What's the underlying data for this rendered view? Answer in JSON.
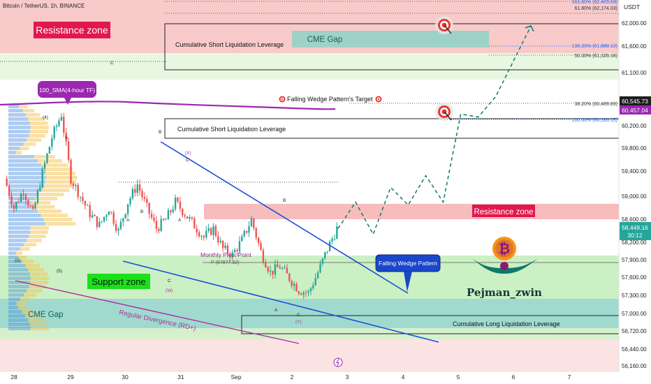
{
  "header": {
    "symbol_line": "Bitcoin / TetherUS, 1h, BINANCE",
    "currency": "USDT"
  },
  "price_axis": {
    "ticks": [
      "62,000.00",
      "61,600.00",
      "61,100.00",
      "60,600.00",
      "60,200.00",
      "59,800.00",
      "59,400.00",
      "59,000.00",
      "58,600.00",
      "58,200.00",
      "57,900.00",
      "57,600.00",
      "57,300.00",
      "57,000.00",
      "56,720.00",
      "56,440.00",
      "56,160.00"
    ],
    "current_price": "58,449.16",
    "countdown": "30:12",
    "badge_high": "60,545.73",
    "badge_low": "60,457.04"
  },
  "time_axis": {
    "ticks": [
      "28",
      "29",
      "30",
      "31",
      "Sep",
      "2",
      "3",
      "4",
      "5",
      "6",
      "7"
    ]
  },
  "fib": {
    "top": "161.80% (62,403.63)",
    "f618": "61.80% (62,174.03)",
    "f1382": "138.20% (61,689.13)",
    "f50": "50.00% (61,326.18)",
    "f382": "38.20% (60,489.89)",
    "f100": "100.00% (60,393.15)"
  },
  "annotations": {
    "resistance_top": "Resistance zone",
    "resistance_mid": "Resistance zone",
    "support": "Support zone",
    "cme_gap_top": "CME Gap",
    "cme_gap_bottom": "CME Gap",
    "short_liq_1": "Cumulative Short Liquidation Leverage",
    "short_liq_2": "Cumulative Short Liquidation Leverage",
    "long_liq": "Cumulative Long Liquidation Leverage",
    "sma": "100_SMA(4-hour TF)",
    "wedge_target": "Falling Wedge Pattern's Target",
    "wedge_label": "Falling Wedge Pattern",
    "pivot": "Monthly Pivot Point",
    "pivot_value": "P (57877.92)",
    "divergence": "Regular Divergence (RD+)",
    "author": "Pejman_zwin",
    "wave_c_top": "C",
    "wave_4": "(4)",
    "wave_a1": "A",
    "wave_3": "(3)",
    "wave_5": "(5)",
    "wave_b1": "B",
    "wave_x": "(X)",
    "wave_c2": "C",
    "wave_a2": "A",
    "wave_b2": "B",
    "wave_c3": "C",
    "wave_w": "(W)",
    "wave_a3": "A",
    "wave_b3": "B",
    "wave_a4": "A",
    "wave_c4": "C",
    "wave_y": "(Y)"
  },
  "colors": {
    "resistance": "#f4a6a6",
    "support": "#b9ebb0",
    "cme_gap": "#8fd3c6",
    "up_candle": "#26a69a",
    "down_candle": "#ef5350",
    "wedge_line": "#1b4fd6",
    "sma_line": "#9c27b0",
    "divergence": "#b02ca8"
  },
  "chart_data": {
    "type": "candlestick",
    "title": "Bitcoin / TetherUS, 1h, BINANCE",
    "x_ticks": [
      "28",
      "29",
      "30",
      "31",
      "Sep",
      "2",
      "3",
      "4",
      "5",
      "6",
      "7"
    ],
    "y_ticks": [
      62000,
      61600,
      61100,
      60600,
      60200,
      59800,
      59400,
      59000,
      58600,
      58200,
      57900,
      57600,
      57300,
      57000,
      56720,
      56440,
      56160
    ],
    "ylim": [
      56100,
      62500
    ],
    "last_price": 58449.16,
    "close_path": [
      59300,
      58800,
      59100,
      58700,
      59400,
      60000,
      60400,
      59300,
      59000,
      58700,
      58500,
      58800,
      58400,
      58900,
      59200,
      58800,
      58450,
      58600,
      58900,
      58700,
      58500,
      58300,
      58450,
      58100,
      58000,
      58250,
      58600,
      58050,
      57700,
      57800,
      57600,
      57400,
      57350,
      57700,
      58100,
      58449
    ],
    "projection_path": [
      58449,
      58900,
      58350,
      59150,
      58850,
      59350,
      58900,
      60400,
      60350,
      60700,
      61300,
      61900
    ],
    "fib_levels": [
      {
        "label": "161.80%",
        "value": 62403.63
      },
      {
        "label": "61.80%",
        "value": 62174.03
      },
      {
        "label": "138.20%",
        "value": 61689.13
      },
      {
        "label": "50.00%",
        "value": 61326.18
      },
      {
        "label": "38.20%",
        "value": 60489.89
      },
      {
        "label": "100.00%",
        "value": 60393.15
      }
    ],
    "monthly_pivot": 57877.92,
    "grid": false
  }
}
